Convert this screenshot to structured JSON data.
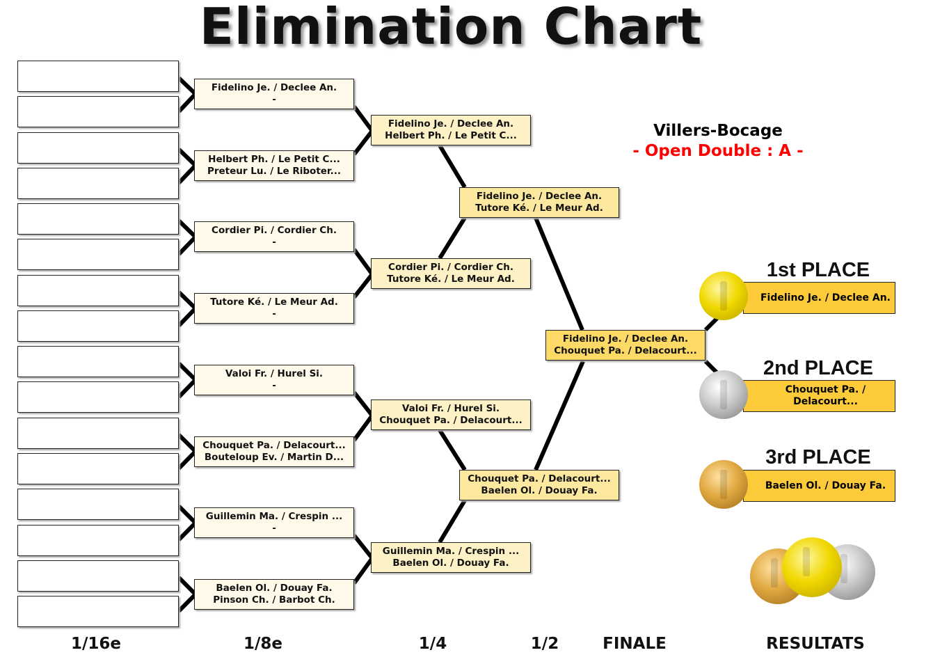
{
  "title": "Elimination Chart",
  "event": {
    "location": "Villers-Bocage",
    "category": "- Open Double : A -",
    "category_color": "#ff0000"
  },
  "round16": [
    "",
    "",
    "",
    "",
    "",
    "",
    "",
    "",
    "",
    "",
    "",
    "",
    "",
    "",
    "",
    ""
  ],
  "round8": [
    [
      "Fidelino Je. / Declee An.",
      "-"
    ],
    [
      "Helbert Ph. / Le Petit C...",
      "Preteur Lu. / Le Riboter..."
    ],
    [
      "Cordier Pi. / Cordier Ch.",
      "-"
    ],
    [
      "Tutore Ké. / Le Meur Ad.",
      "-"
    ],
    [
      "Valoi Fr. / Hurel Si.",
      "-"
    ],
    [
      "Chouquet Pa. / Delacourt...",
      "Bouteloup Ev. / Martin D..."
    ],
    [
      "Guillemin Ma. / Crespin ...",
      "-"
    ],
    [
      "Baelen Ol. / Douay Fa.",
      "Pinson Ch. / Barbot Ch."
    ]
  ],
  "quarter": [
    [
      "Fidelino Je. / Declee An.",
      "Helbert Ph. / Le Petit C..."
    ],
    [
      "Cordier Pi. / Cordier Ch.",
      "Tutore Ké. / Le Meur Ad."
    ],
    [
      "Valoi Fr. / Hurel Si.",
      "Chouquet Pa. / Delacourt..."
    ],
    [
      "Guillemin Ma. / Crespin ...",
      "Baelen Ol. / Douay Fa."
    ]
  ],
  "semi": [
    [
      "Fidelino Je. / Declee An.",
      "Tutore Ké. / Le Meur Ad."
    ],
    [
      "Chouquet Pa. / Delacourt...",
      "Baelen Ol. / Douay Fa."
    ]
  ],
  "final": [
    "Fidelino Je. / Declee An.",
    "Chouquet Pa. / Delacourt..."
  ],
  "results": [
    {
      "place": "1st PLACE",
      "team": "Fidelino Je. / Declee An.",
      "medal": "gold"
    },
    {
      "place": "2nd PLACE",
      "team": "Chouquet Pa. / Delacourt...",
      "medal": "silver"
    },
    {
      "place": "3rd PLACE",
      "team": "Baelen Ol. / Douay Fa.",
      "medal": "bronze"
    }
  ],
  "columns": [
    "1/16e",
    "1/8e",
    "1/4",
    "1/2",
    "FINALE",
    "RESULTATS"
  ]
}
